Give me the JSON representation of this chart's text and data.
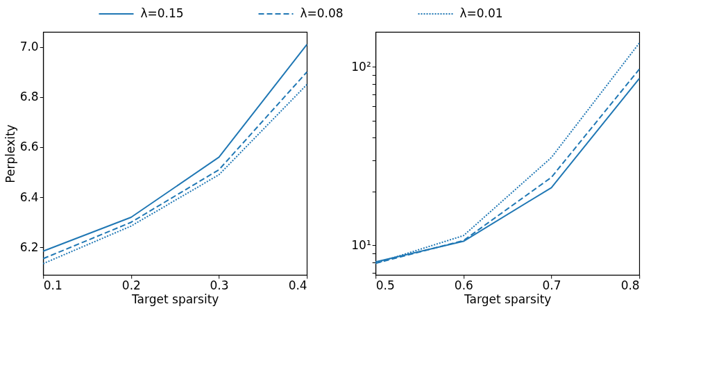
{
  "chart_data": [
    {
      "type": "line",
      "xlabel": "Target sparsity",
      "ylabel": "Perplexity",
      "x": [
        0.1,
        0.2,
        0.3,
        0.4
      ],
      "xlim": [
        0.1,
        0.4
      ],
      "xticks": [
        0.1,
        0.2,
        0.3,
        0.4
      ],
      "ylim": [
        6.09,
        7.06
      ],
      "yticks": [
        6.2,
        6.4,
        6.6,
        6.8,
        {
          "value": 7.0,
          "label": "7.0"
        }
      ],
      "grid": false,
      "legend": "top",
      "marker": "none",
      "series": [
        {
          "name": "λ=0.15",
          "color": "#1f77b4",
          "line_style": "solid",
          "values": [
            6.185,
            6.32,
            6.56,
            7.01
          ]
        },
        {
          "name": "λ=0.08",
          "color": "#1f77b4",
          "line_style": "dashed",
          "values": [
            6.155,
            6.3,
            6.51,
            6.9
          ]
        },
        {
          "name": "λ=0.01",
          "color": "#1f77b4",
          "line_style": "dotted",
          "values": [
            6.135,
            6.285,
            6.49,
            6.85
          ]
        }
      ]
    },
    {
      "type": "line",
      "xlabel": "Target sparsity",
      "x": [
        0.5,
        0.6,
        0.7,
        0.8
      ],
      "xlim": [
        0.5,
        0.8
      ],
      "xticks": [
        0.5,
        0.6,
        0.7,
        0.8
      ],
      "ylim": [
        6.8,
        157
      ],
      "log": true,
      "yticks": [
        {
          "value": 7,
          "label": null
        },
        {
          "value": 8,
          "label": null
        },
        {
          "value": 9,
          "label": null
        },
        {
          "value": 10,
          "label": "10¹"
        },
        {
          "value": 20,
          "label": null
        },
        {
          "value": 30,
          "label": null
        },
        {
          "value": 40,
          "label": null
        },
        {
          "value": 50,
          "label": null
        },
        {
          "value": 60,
          "label": null
        },
        {
          "value": 70,
          "label": null
        },
        {
          "value": 80,
          "label": null
        },
        {
          "value": 90,
          "label": null
        },
        {
          "value": 100,
          "label": "10²"
        }
      ],
      "grid": false,
      "legend": "top",
      "marker": "none",
      "series": [
        {
          "name": "λ=0.15",
          "color": "#1f77b4",
          "line_style": "solid",
          "values": [
            8.05,
            10.5,
            21,
            86
          ]
        },
        {
          "name": "λ=0.08",
          "color": "#1f77b4",
          "line_style": "dashed",
          "values": [
            7.9,
            10.6,
            24,
            97
          ]
        },
        {
          "name": "λ=0.01",
          "color": "#1f77b4",
          "line_style": "dotted",
          "values": [
            7.9,
            11.3,
            31,
            136
          ]
        }
      ]
    }
  ]
}
